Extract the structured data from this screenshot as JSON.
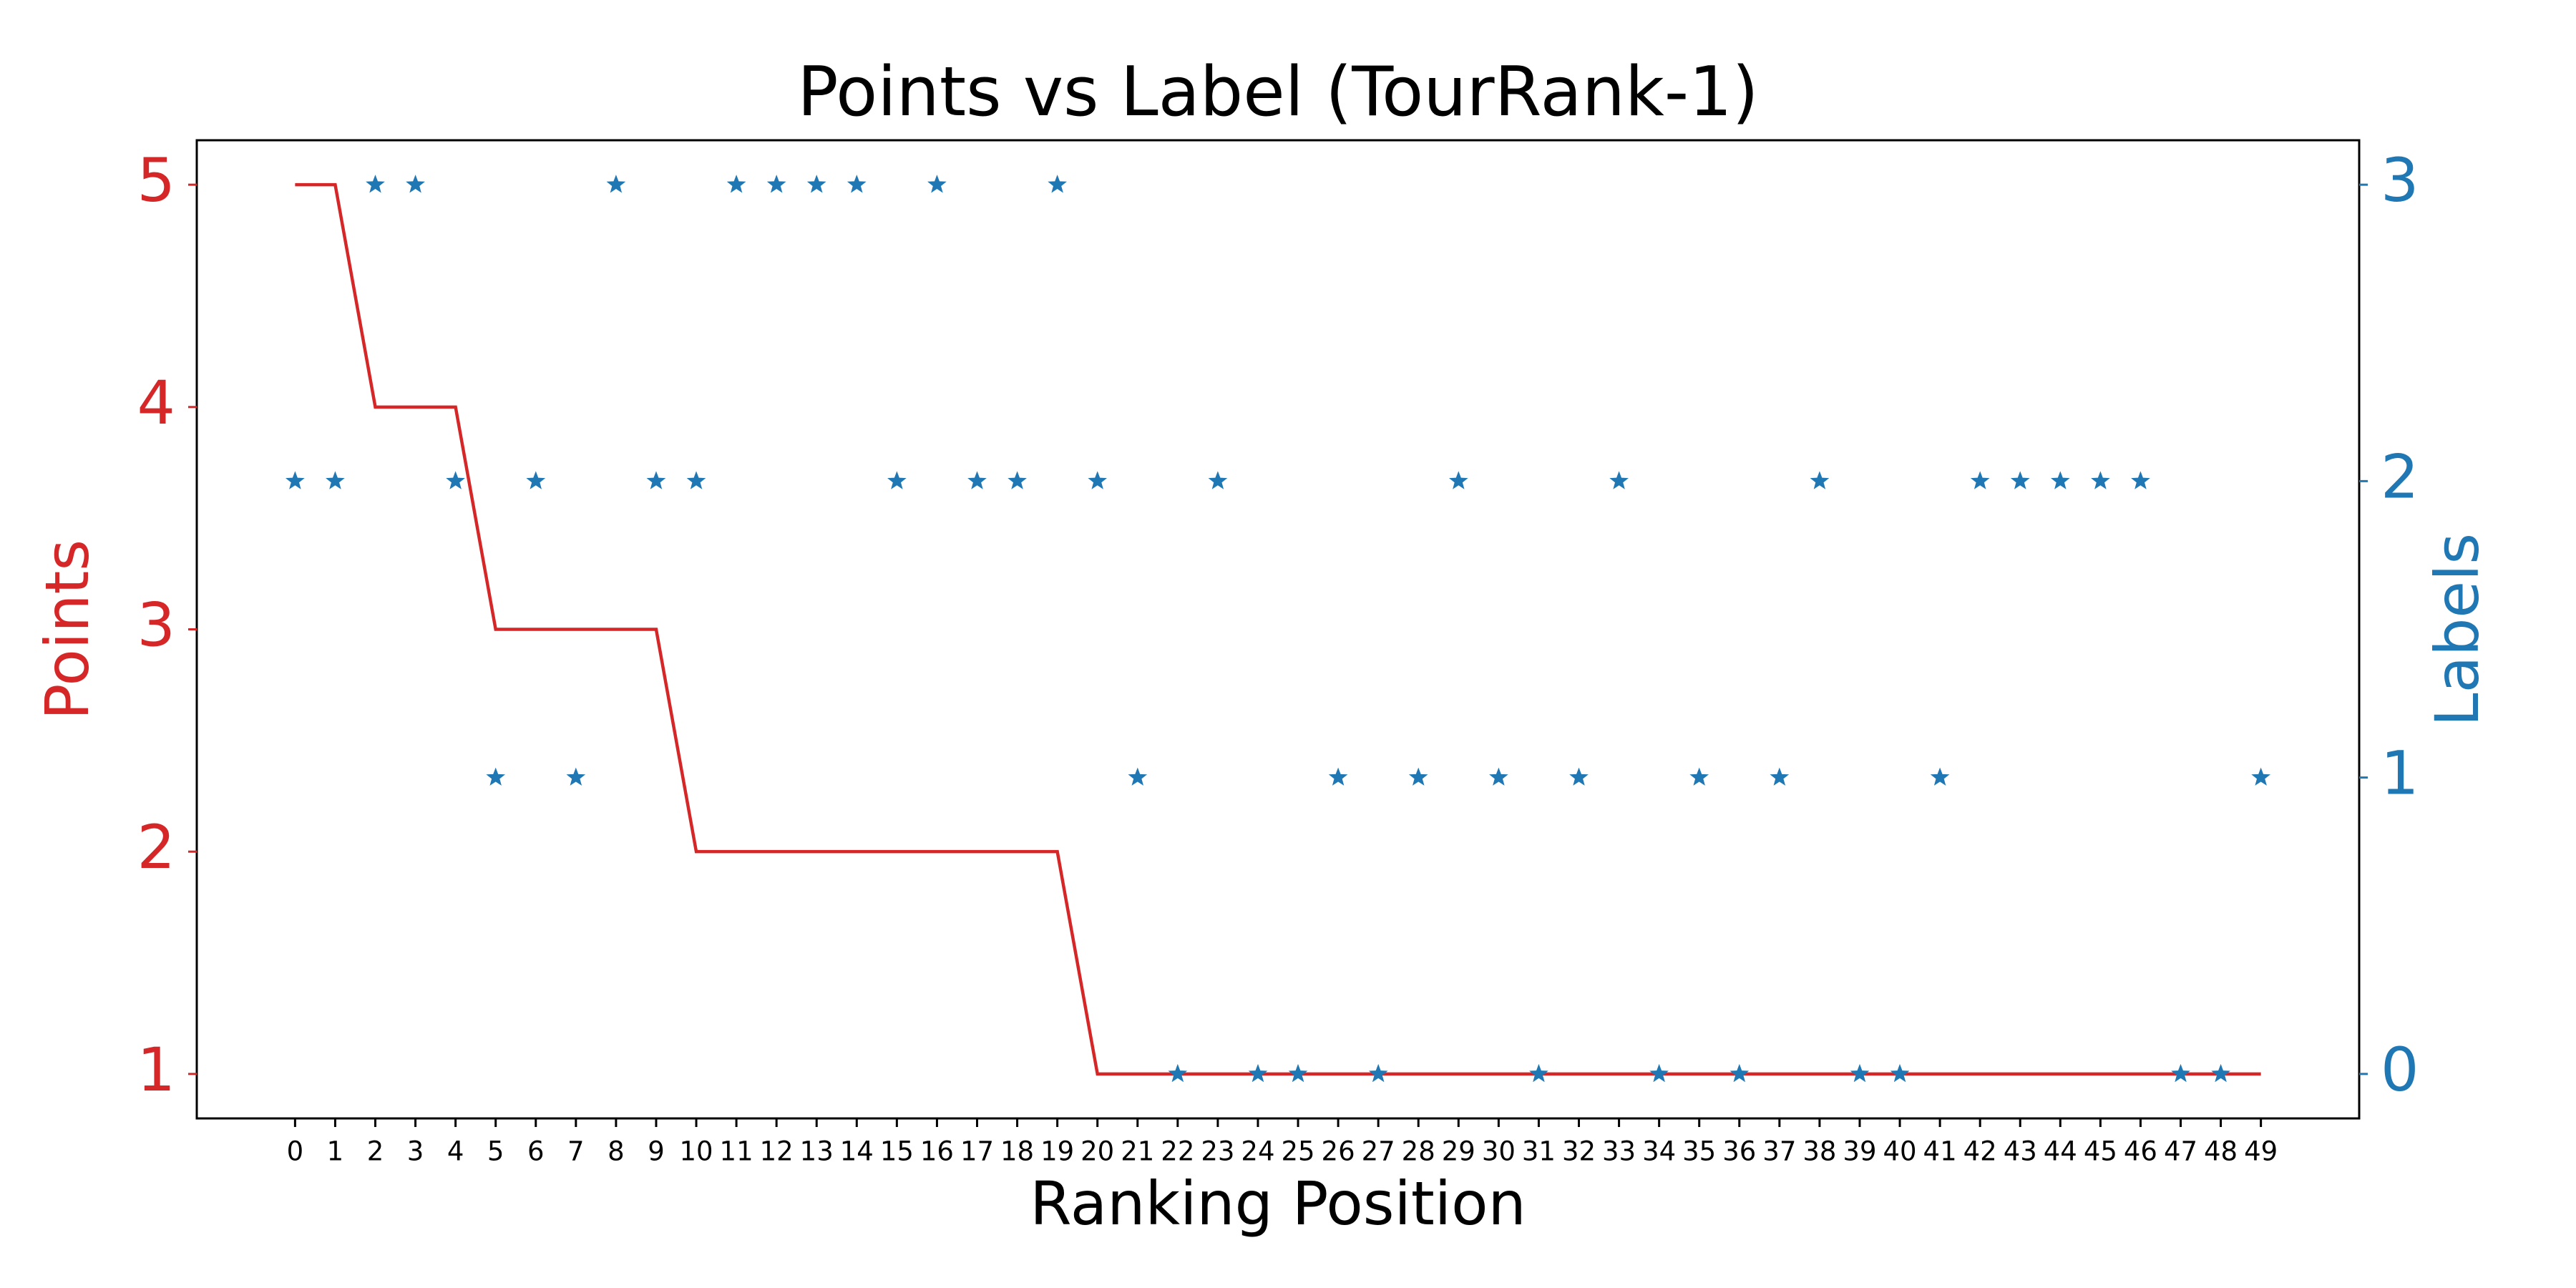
{
  "chart_data": {
    "type": "line",
    "title": "Points vs Label (TourRank-1)",
    "xlabel": "Ranking Position",
    "ylabel": "Points",
    "y2label": "Labels",
    "x": [
      0,
      1,
      2,
      3,
      4,
      5,
      6,
      7,
      8,
      9,
      10,
      11,
      12,
      13,
      14,
      15,
      16,
      17,
      18,
      19,
      20,
      21,
      22,
      23,
      24,
      25,
      26,
      27,
      28,
      29,
      30,
      31,
      32,
      33,
      34,
      35,
      36,
      37,
      38,
      39,
      40,
      41,
      42,
      43,
      44,
      45,
      46,
      47,
      48,
      49
    ],
    "series": [
      {
        "type": "line",
        "color": "#d62728",
        "axis": "y",
        "values": [
          5,
          5,
          4,
          4,
          4,
          3,
          3,
          3,
          3,
          3,
          2,
          2,
          2,
          2,
          2,
          2,
          2,
          2,
          2,
          2,
          1,
          1,
          1,
          1,
          1,
          1,
          1,
          1,
          1,
          1,
          1,
          1,
          1,
          1,
          1,
          1,
          1,
          1,
          1,
          1,
          1,
          1,
          1,
          1,
          1,
          1,
          1,
          1,
          1,
          1
        ]
      },
      {
        "type": "scatter",
        "marker": "star",
        "color": "#1f77b4",
        "axis": "y2",
        "values": [
          2,
          2,
          3,
          3,
          2,
          1,
          2,
          1,
          3,
          2,
          2,
          3,
          3,
          3,
          3,
          2,
          3,
          2,
          2,
          3,
          2,
          1,
          0,
          2,
          0,
          0,
          1,
          0,
          1,
          2,
          1,
          0,
          1,
          2,
          0,
          1,
          0,
          1,
          2,
          0,
          0,
          1,
          2,
          2,
          2,
          2,
          2,
          0,
          0,
          1
        ]
      }
    ],
    "xlim": [
      -2.45,
      51.45
    ],
    "xticks": [
      0,
      1,
      2,
      3,
      4,
      5,
      6,
      7,
      8,
      9,
      10,
      11,
      12,
      13,
      14,
      15,
      16,
      17,
      18,
      19,
      20,
      21,
      22,
      23,
      24,
      25,
      26,
      27,
      28,
      29,
      30,
      31,
      32,
      33,
      34,
      35,
      36,
      37,
      38,
      39,
      40,
      41,
      42,
      43,
      44,
      45,
      46,
      47,
      48,
      49
    ],
    "ylim": [
      0.8,
      5.2
    ],
    "yticks": [
      1,
      2,
      3,
      4,
      5
    ],
    "y2lim": [
      -0.15,
      3.15
    ],
    "y2ticks": [
      0,
      1,
      2,
      3
    ],
    "grid": false
  }
}
